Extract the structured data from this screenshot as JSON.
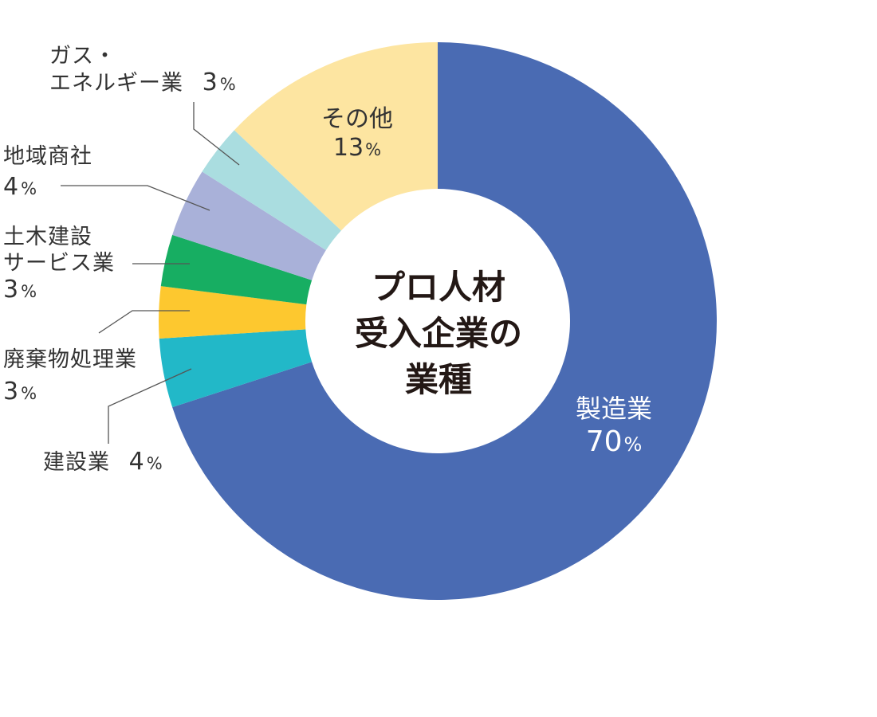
{
  "chart_data": {
    "type": "pie",
    "donut": true,
    "title_lines": [
      "プロ人材",
      "受入企業の",
      "業種"
    ],
    "categories": [
      "製造業",
      "建設業",
      "廃棄物処理業",
      "土木建設サービス業",
      "地域商社",
      "ガス・エネルギー業",
      "その他"
    ],
    "values": [
      70,
      4,
      3,
      3,
      4,
      3,
      13
    ],
    "unit": "%",
    "slices": [
      {
        "name": "製造業",
        "label_lines": [
          "製造業"
        ],
        "value": 70,
        "color": "#4a6bb3"
      },
      {
        "name": "建設業",
        "label_lines": [
          "建設業"
        ],
        "value": 4,
        "color": "#22b8c8"
      },
      {
        "name": "廃棄物処理業",
        "label_lines": [
          "廃棄物処理業"
        ],
        "value": 3,
        "color": "#fdc82f"
      },
      {
        "name": "土木建設サービス業",
        "label_lines": [
          "土木建設",
          "サービス業"
        ],
        "value": 3,
        "color": "#17ae62"
      },
      {
        "name": "地域商社",
        "label_lines": [
          "地域商社"
        ],
        "value": 4,
        "color": "#a9b1d9"
      },
      {
        "name": "ガス・エネルギー業",
        "label_lines": [
          "ガス・",
          "エネルギー業"
        ],
        "value": 3,
        "color": "#aadde0"
      },
      {
        "name": "その他",
        "label_lines": [
          "その他"
        ],
        "value": 13,
        "color": "#fde5a1"
      }
    ]
  }
}
